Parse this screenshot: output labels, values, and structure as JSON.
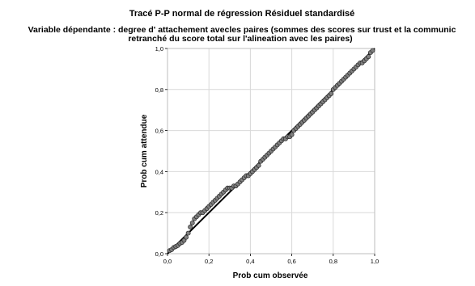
{
  "chart_data": {
    "type": "scatter",
    "title": "Tracé P-P normal de régression Résiduel standardisé",
    "subtitle_line1": "Variable dépendante : degree d' attachement avecles paires (sommes des scores sur trust et la communic",
    "subtitle_line2": "retranché du score total sur l'alineation avec les paires)",
    "xlabel": "Prob cum observée",
    "ylabel": "Prob cum attendue",
    "xlim": [
      0,
      1
    ],
    "ylim": [
      0,
      1
    ],
    "x_ticks": [
      "0,0",
      "0,2",
      "0,4",
      "0,6",
      "0,8",
      "1,0"
    ],
    "y_ticks": [
      "0,0",
      "0,2",
      "0,4",
      "0,6",
      "0,8",
      "1,0"
    ],
    "grid": true,
    "reference_line": {
      "from": [
        0,
        0
      ],
      "to": [
        1,
        1
      ]
    },
    "marker_color": "#808080",
    "series": [
      {
        "x": [
          0.01,
          0.02,
          0.03,
          0.04,
          0.05,
          0.06,
          0.07,
          0.08,
          0.09,
          0.1,
          0.11,
          0.12,
          0.13,
          0.14,
          0.15,
          0.16,
          0.17,
          0.18,
          0.19,
          0.2,
          0.21,
          0.22,
          0.23,
          0.24,
          0.25,
          0.26,
          0.27,
          0.28,
          0.29,
          0.3,
          0.31,
          0.32,
          0.33,
          0.34,
          0.35,
          0.36,
          0.37,
          0.38,
          0.39,
          0.4,
          0.41,
          0.42,
          0.43,
          0.44,
          0.45,
          0.46,
          0.47,
          0.48,
          0.49,
          0.5,
          0.51,
          0.52,
          0.53,
          0.54,
          0.55,
          0.56,
          0.57,
          0.58,
          0.59,
          0.6,
          0.61,
          0.62,
          0.63,
          0.64,
          0.65,
          0.66,
          0.67,
          0.68,
          0.69,
          0.7,
          0.71,
          0.72,
          0.73,
          0.74,
          0.75,
          0.76,
          0.77,
          0.78,
          0.79,
          0.8,
          0.81,
          0.82,
          0.83,
          0.84,
          0.85,
          0.86,
          0.87,
          0.88,
          0.89,
          0.9,
          0.91,
          0.92,
          0.93,
          0.94,
          0.95,
          0.96,
          0.97,
          0.98,
          0.99
        ],
        "y": [
          0.015,
          0.02,
          0.03,
          0.035,
          0.04,
          0.05,
          0.055,
          0.065,
          0.08,
          0.1,
          0.13,
          0.15,
          0.17,
          0.18,
          0.19,
          0.2,
          0.2,
          0.21,
          0.22,
          0.23,
          0.24,
          0.25,
          0.26,
          0.27,
          0.28,
          0.29,
          0.3,
          0.31,
          0.32,
          0.32,
          0.32,
          0.33,
          0.33,
          0.34,
          0.35,
          0.36,
          0.37,
          0.38,
          0.38,
          0.39,
          0.4,
          0.41,
          0.42,
          0.43,
          0.45,
          0.46,
          0.47,
          0.48,
          0.49,
          0.5,
          0.51,
          0.52,
          0.53,
          0.54,
          0.55,
          0.56,
          0.56,
          0.57,
          0.57,
          0.58,
          0.6,
          0.61,
          0.62,
          0.63,
          0.64,
          0.65,
          0.66,
          0.67,
          0.68,
          0.69,
          0.7,
          0.71,
          0.72,
          0.73,
          0.74,
          0.75,
          0.76,
          0.77,
          0.78,
          0.8,
          0.81,
          0.82,
          0.83,
          0.84,
          0.85,
          0.86,
          0.87,
          0.88,
          0.89,
          0.9,
          0.91,
          0.92,
          0.93,
          0.93,
          0.94,
          0.95,
          0.96,
          0.98,
          0.99
        ]
      }
    ]
  }
}
